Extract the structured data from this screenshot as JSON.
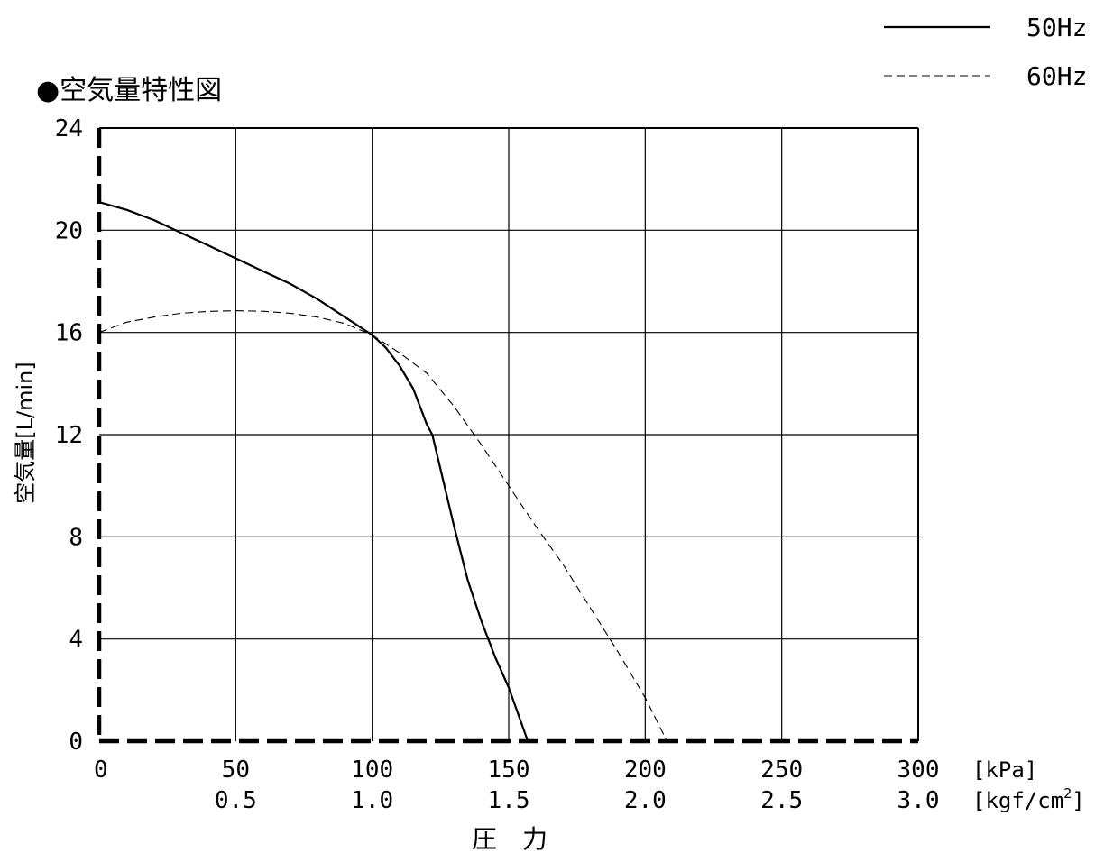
{
  "chart_data": {
    "type": "line",
    "title": "●空気量特性図",
    "ylabel": "空気量[L/min]",
    "xlabel": "圧　力",
    "x_unit_primary": "[kPa]",
    "x_unit_secondary": "[kgf/cm",
    "x_unit_secondary_sup": "2",
    "x_unit_secondary_close": "]",
    "xlim": [
      0,
      300
    ],
    "ylim": [
      0,
      24
    ],
    "x_ticks": [
      "0",
      "50",
      "100",
      "150",
      "200",
      "250",
      "300"
    ],
    "x_ticks_secondary": [
      "0.5",
      "1.0",
      "1.5",
      "2.0",
      "2.5",
      "3.0"
    ],
    "y_ticks": [
      "0",
      "4",
      "8",
      "12",
      "16",
      "20",
      "24"
    ],
    "grid": true,
    "legend_position": "top-right",
    "series": [
      {
        "name": "50Hz",
        "style": "solid",
        "points": [
          [
            0,
            21.1
          ],
          [
            10,
            20.8
          ],
          [
            20,
            20.4
          ],
          [
            30,
            19.9
          ],
          [
            40,
            19.4
          ],
          [
            50,
            18.9
          ],
          [
            60,
            18.4
          ],
          [
            70,
            17.9
          ],
          [
            80,
            17.3
          ],
          [
            90,
            16.6
          ],
          [
            100,
            15.9
          ],
          [
            105,
            15.4
          ],
          [
            110,
            14.7
          ],
          [
            115,
            13.8
          ],
          [
            120,
            12.4
          ],
          [
            122,
            12.0
          ],
          [
            126,
            10.2
          ],
          [
            130,
            8.4
          ],
          [
            135,
            6.3
          ],
          [
            140,
            4.7
          ],
          [
            145,
            3.3
          ],
          [
            150,
            2.1
          ],
          [
            157,
            0
          ]
        ]
      },
      {
        "name": "60Hz",
        "style": "dashed",
        "points": [
          [
            0,
            16.0
          ],
          [
            10,
            16.4
          ],
          [
            20,
            16.6
          ],
          [
            30,
            16.75
          ],
          [
            40,
            16.82
          ],
          [
            50,
            16.85
          ],
          [
            60,
            16.83
          ],
          [
            70,
            16.75
          ],
          [
            80,
            16.6
          ],
          [
            90,
            16.35
          ],
          [
            100,
            15.9
          ],
          [
            110,
            15.2
          ],
          [
            120,
            14.4
          ],
          [
            130,
            13.1
          ],
          [
            140,
            11.6
          ],
          [
            150,
            10.0
          ],
          [
            160,
            8.4
          ],
          [
            170,
            6.9
          ],
          [
            180,
            5.2
          ],
          [
            190,
            3.5
          ],
          [
            200,
            1.7
          ],
          [
            208,
            0
          ]
        ]
      }
    ]
  }
}
